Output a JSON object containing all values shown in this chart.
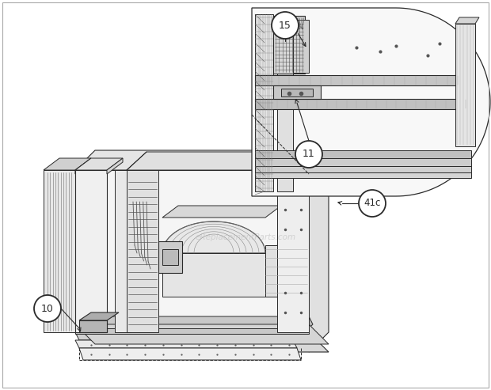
{
  "bg_color": "#ffffff",
  "line_color": "#2a2a2a",
  "lc_med": "#555555",
  "lc_light": "#888888",
  "lc_vlight": "#aaaaaa",
  "fill_white": "#ffffff",
  "fill_light": "#f0f0f0",
  "fill_mid": "#d8d8d8",
  "fill_dark": "#b8b8b8",
  "fill_darker": "#999999",
  "watermark_text": "eReplacementParts.com",
  "watermark_color": "#bbbbbb",
  "watermark_alpha": 0.55,
  "fig_width": 6.2,
  "fig_height": 4.93,
  "dpi": 100
}
